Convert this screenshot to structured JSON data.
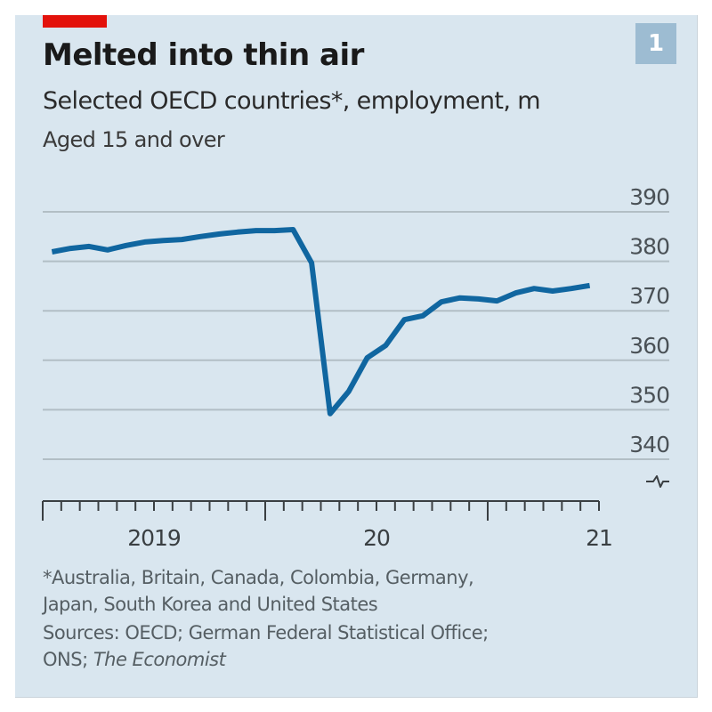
{
  "header": {
    "title": "Melted into thin air",
    "subtitle": "Selected OECD countries*, employment, m",
    "subsubtitle": "Aged 15 and over",
    "chart_number": "1"
  },
  "footnote": {
    "note_line1": "*Australia, Britain, Canada, Colombia, Germany,",
    "note_line2": "Japan, South Korea and United States",
    "sources_line1": "Sources: OECD; German Federal Statistical Office;",
    "sources_line2_prefix": "ONS; ",
    "sources_line2_italic": "The Economist"
  },
  "colors": {
    "background": "#d9e6ef",
    "accent_red": "#e3120b",
    "line": "#1066a0",
    "grid": "#b2bec5",
    "text": "#1a1a1a"
  },
  "chart_data": {
    "type": "line",
    "title": "Melted into thin air",
    "subtitle": "Selected OECD countries*, employment, m — Aged 15 and over",
    "xlabel": "",
    "ylabel": "employment, m",
    "ylim": [
      340,
      390
    ],
    "yticks": [
      390,
      380,
      370,
      360,
      350,
      340
    ],
    "y_axis_position": "right",
    "y_axis_break": true,
    "grid": true,
    "legend": "none",
    "x_range": [
      "2019-01",
      "2021-07"
    ],
    "x_tick_labels": [
      {
        "label": "2019",
        "year_start": "2019-01"
      },
      {
        "label": "20",
        "year_start": "2020-01"
      },
      {
        "label": "21",
        "year_start": "2021-01"
      }
    ],
    "x": [
      "2019-01",
      "2019-02",
      "2019-03",
      "2019-04",
      "2019-05",
      "2019-06",
      "2019-07",
      "2019-08",
      "2019-09",
      "2019-10",
      "2019-11",
      "2019-12",
      "2020-01",
      "2020-02",
      "2020-03",
      "2020-04",
      "2020-05",
      "2020-06",
      "2020-07",
      "2020-08",
      "2020-09",
      "2020-10",
      "2020-11",
      "2020-12",
      "2021-01",
      "2021-02",
      "2021-03",
      "2021-04",
      "2021-05",
      "2021-06"
    ],
    "series": [
      {
        "name": "Employment, m",
        "values": [
          381.9,
          382.6,
          383.0,
          382.3,
          383.2,
          383.9,
          384.2,
          384.4,
          385.0,
          385.5,
          385.9,
          386.2,
          386.2,
          386.4,
          379.7,
          349.2,
          353.7,
          360.5,
          363.0,
          368.2,
          369.0,
          371.8,
          372.6,
          372.4,
          372.0,
          373.6,
          374.5,
          374.0,
          374.5,
          375.1
        ]
      }
    ]
  }
}
